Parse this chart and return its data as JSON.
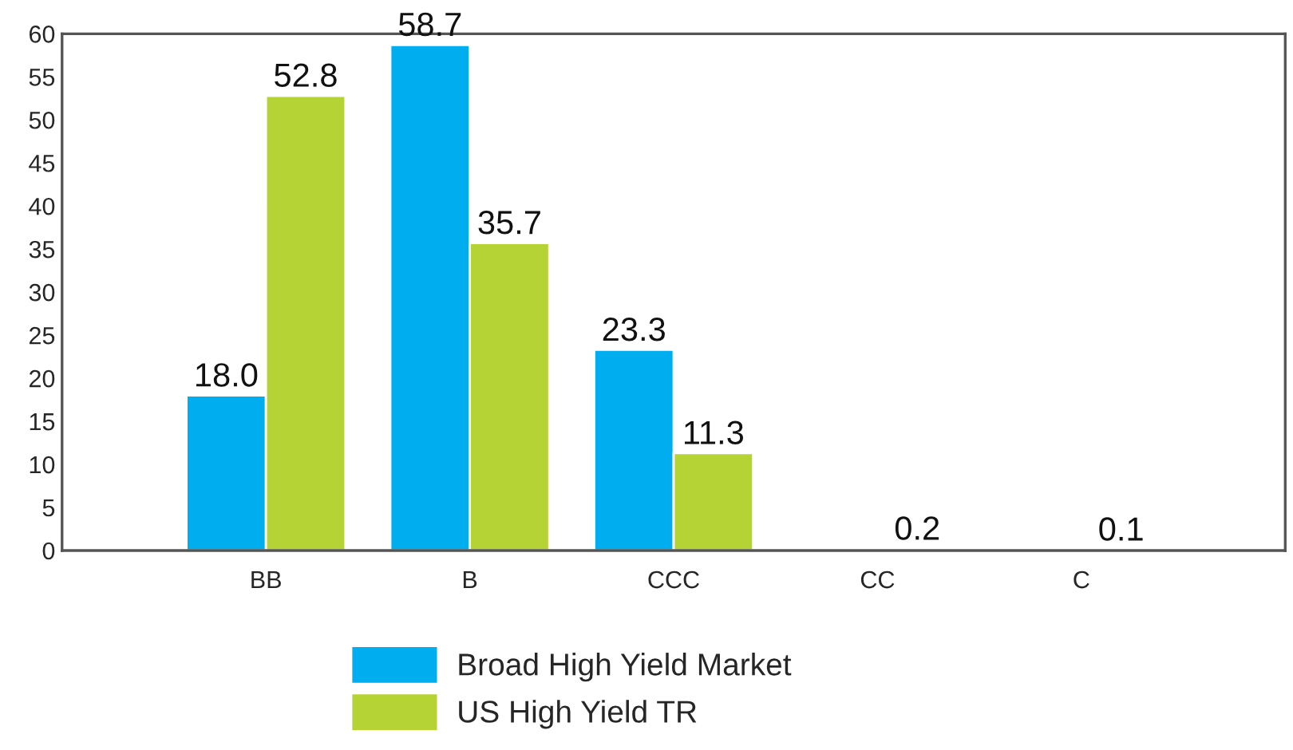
{
  "chart_data": {
    "type": "bar",
    "categories": [
      "BB",
      "B",
      "CCC",
      "CC",
      "C"
    ],
    "series": [
      {
        "name": "Broad High Yield Market",
        "color": "#00aeef",
        "values": [
          18.0,
          58.7,
          23.3,
          null,
          null
        ],
        "value_labels": [
          "18.0",
          "58.7",
          "23.3",
          null,
          null
        ]
      },
      {
        "name": "US High Yield TR",
        "color": "#b5d334",
        "values": [
          52.8,
          35.7,
          11.3,
          0.2,
          0.1
        ],
        "value_labels": [
          "52.8",
          "35.7",
          "11.3",
          "0.2",
          "0.1"
        ]
      }
    ],
    "ylim": [
      0,
      60
    ],
    "yticks": [
      0,
      5,
      10,
      15,
      20,
      25,
      30,
      35,
      40,
      45,
      50,
      55,
      60
    ],
    "grid": false,
    "legend": "bottom"
  }
}
